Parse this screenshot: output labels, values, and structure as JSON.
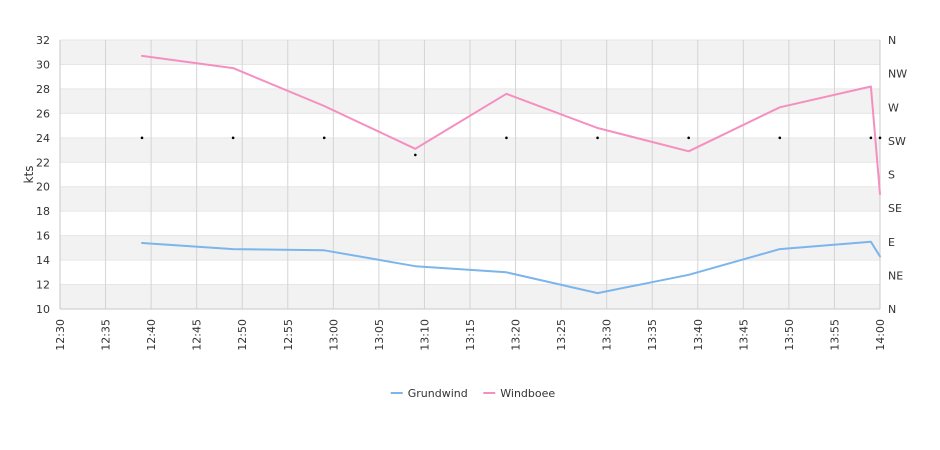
{
  "chart_data": {
    "type": "line",
    "ylabel": "kts",
    "ylim": [
      10,
      32
    ],
    "yticks": [
      "10",
      "12",
      "14",
      "16",
      "18",
      "20",
      "22",
      "24",
      "26",
      "28",
      "30",
      "32"
    ],
    "xticks": [
      "12:30",
      "12:35",
      "12:40",
      "12:45",
      "12:50",
      "12:55",
      "13:00",
      "13:05",
      "13:10",
      "13:15",
      "13:20",
      "13:25",
      "13:30",
      "13:35",
      "13:40",
      "13:45",
      "13:50",
      "13:55",
      "14:00"
    ],
    "y2label": "",
    "y2ticks": [
      "N",
      "NE",
      "E",
      "SE",
      "S",
      "SW",
      "W",
      "NW",
      "N"
    ],
    "grid": true,
    "legend_position": "bottom-center",
    "series": [
      {
        "name": "Grundwind",
        "color": "#7cb5ec",
        "x": [
          "12:39",
          "12:49",
          "12:59",
          "13:09",
          "13:19",
          "13:29",
          "13:39",
          "13:49",
          "13:59",
          "14:00"
        ],
        "values": [
          15.4,
          14.9,
          14.8,
          13.5,
          13.0,
          11.3,
          12.8,
          14.9,
          15.5,
          14.3
        ]
      },
      {
        "name": "Windboee",
        "color": "#f48fc0",
        "x": [
          "12:39",
          "12:49",
          "12:59",
          "13:09",
          "13:19",
          "13:29",
          "13:39",
          "13:49",
          "13:59",
          "14:00"
        ],
        "values": [
          30.7,
          29.7,
          26.6,
          23.1,
          27.6,
          24.8,
          22.9,
          26.5,
          28.2,
          19.4
        ]
      }
    ],
    "direction_markers": {
      "x": [
        "12:39",
        "12:49",
        "12:59",
        "13:09",
        "13:19",
        "13:29",
        "13:39",
        "13:49",
        "13:59",
        "14:00"
      ],
      "values": [
        24.0,
        24.0,
        24.0,
        22.6,
        24.0,
        24.0,
        24.0,
        24.0,
        24.0,
        24.0
      ]
    }
  }
}
